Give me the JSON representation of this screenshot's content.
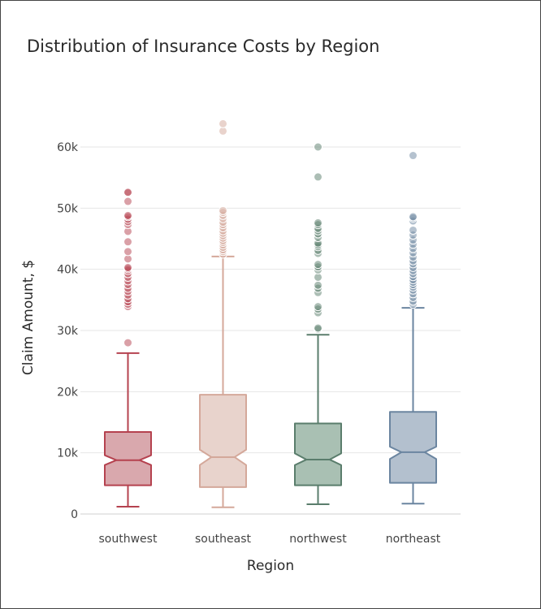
{
  "chart_data": {
    "type": "box",
    "title": "Distribution of Insurance Costs by Region",
    "xlabel": "Region",
    "ylabel": "Claim Amount, $",
    "ylim": [
      0,
      70000
    ],
    "yticks": [
      0,
      10000,
      20000,
      30000,
      40000,
      50000,
      60000
    ],
    "ytick_labels": [
      "0",
      "10k",
      "20k",
      "30k",
      "40k",
      "50k",
      "60k"
    ],
    "grid": true,
    "notched": true,
    "categories": [
      "southwest",
      "southeast",
      "northwest",
      "northeast"
    ],
    "series": [
      {
        "category": "southwest",
        "color": "#b5424f",
        "fill": "#d9a8ad",
        "min": 1200,
        "q1": 4700,
        "median": 8800,
        "q3": 13400,
        "max": 26300,
        "notch_low": 8000,
        "notch_high": 9600,
        "outliers": [
          28000,
          33900,
          34300,
          34700,
          35200,
          35800,
          36400,
          36900,
          37500,
          38100,
          38700,
          39300,
          39800,
          40100,
          40300,
          41700,
          42900,
          44500,
          46200,
          47300,
          47800,
          48200,
          48600,
          48800,
          51100,
          52500,
          52600
        ]
      },
      {
        "category": "southeast",
        "color": "#d4a89a",
        "fill": "#e8d3cc",
        "min": 1100,
        "q1": 4400,
        "median": 9300,
        "q3": 19500,
        "max": 42100,
        "notch_low": 8000,
        "notch_high": 10500,
        "outliers": [
          42500,
          42900,
          43200,
          43600,
          44000,
          44400,
          44700,
          45100,
          45500,
          45900,
          46300,
          46800,
          47300,
          47700,
          48300,
          48800,
          49300,
          49600,
          62600,
          63800
        ]
      },
      {
        "category": "northwest",
        "color": "#5a7d6c",
        "fill": "#a9c0b3",
        "min": 1600,
        "q1": 4700,
        "median": 8900,
        "q3": 14800,
        "max": 29300,
        "notch_low": 8000,
        "notch_high": 9900,
        "outliers": [
          30200,
          30400,
          32900,
          33500,
          33900,
          36200,
          36900,
          37400,
          38700,
          39900,
          40400,
          40800,
          42600,
          43100,
          43700,
          44000,
          44300,
          45200,
          45800,
          46300,
          46700,
          47300,
          47600,
          55100,
          60000
        ]
      },
      {
        "category": "northeast",
        "color": "#6b85a0",
        "fill": "#b3c0ce",
        "min": 1700,
        "q1": 5100,
        "median": 10100,
        "q3": 16700,
        "max": 33700,
        "notch_low": 9000,
        "notch_high": 11000,
        "outliers": [
          34300,
          34800,
          35400,
          36000,
          36600,
          37100,
          37500,
          37900,
          38300,
          38800,
          39300,
          39800,
          40300,
          40900,
          41400,
          42000,
          42700,
          43400,
          44100,
          44800,
          45600,
          46400,
          47900,
          48400,
          48600,
          58600
        ]
      }
    ]
  }
}
